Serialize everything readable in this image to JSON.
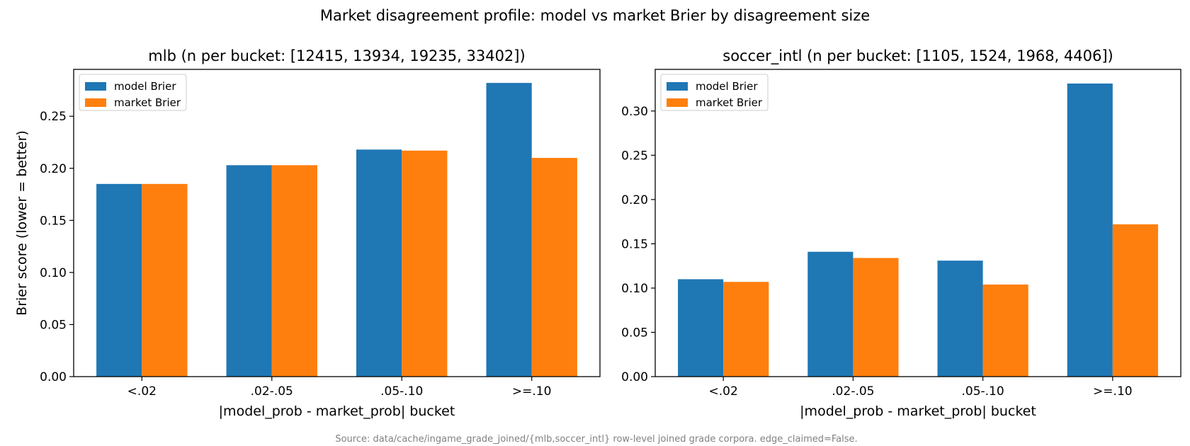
{
  "suptitle": "Market disagreement profile: model vs market Brier by disagreement size",
  "source": "Source: data/cache/ingame_grade_joined/{mlb,soccer_intl} row-level joined grade corpora. edge_claimed=False.",
  "colors": {
    "model": "#1f77b4",
    "market": "#ff7f0e"
  },
  "chart_data": [
    {
      "type": "bar",
      "title": "mlb (n per bucket: [12415, 13934, 19235, 33402])",
      "xlabel": "|model_prob - market_prob| bucket",
      "ylabel": "Brier score (lower = better)",
      "categories": [
        "<.02",
        ".02-.05",
        ".05-.10",
        ">=.10"
      ],
      "series": [
        {
          "name": "model Brier",
          "values": [
            0.185,
            0.203,
            0.218,
            0.282
          ]
        },
        {
          "name": "market Brier",
          "values": [
            0.185,
            0.203,
            0.217,
            0.21
          ]
        }
      ],
      "ylim": [
        0,
        0.295
      ],
      "yticks": [
        "0.00",
        "0.05",
        "0.10",
        "0.15",
        "0.20",
        "0.25"
      ],
      "legend_loc": "upper left",
      "grid": false
    },
    {
      "type": "bar",
      "title": "soccer_intl (n per bucket: [1105, 1524, 1968, 4406])",
      "xlabel": "|model_prob - market_prob| bucket",
      "ylabel": "",
      "categories": [
        "<.02",
        ".02-.05",
        ".05-.10",
        ">=.10"
      ],
      "series": [
        {
          "name": "model Brier",
          "values": [
            0.11,
            0.141,
            0.131,
            0.331
          ]
        },
        {
          "name": "market Brier",
          "values": [
            0.107,
            0.134,
            0.104,
            0.172
          ]
        }
      ],
      "ylim": [
        0,
        0.347
      ],
      "yticks": [
        "0.00",
        "0.05",
        "0.10",
        "0.15",
        "0.20",
        "0.25",
        "0.30"
      ],
      "legend_loc": "upper left",
      "grid": false
    }
  ]
}
